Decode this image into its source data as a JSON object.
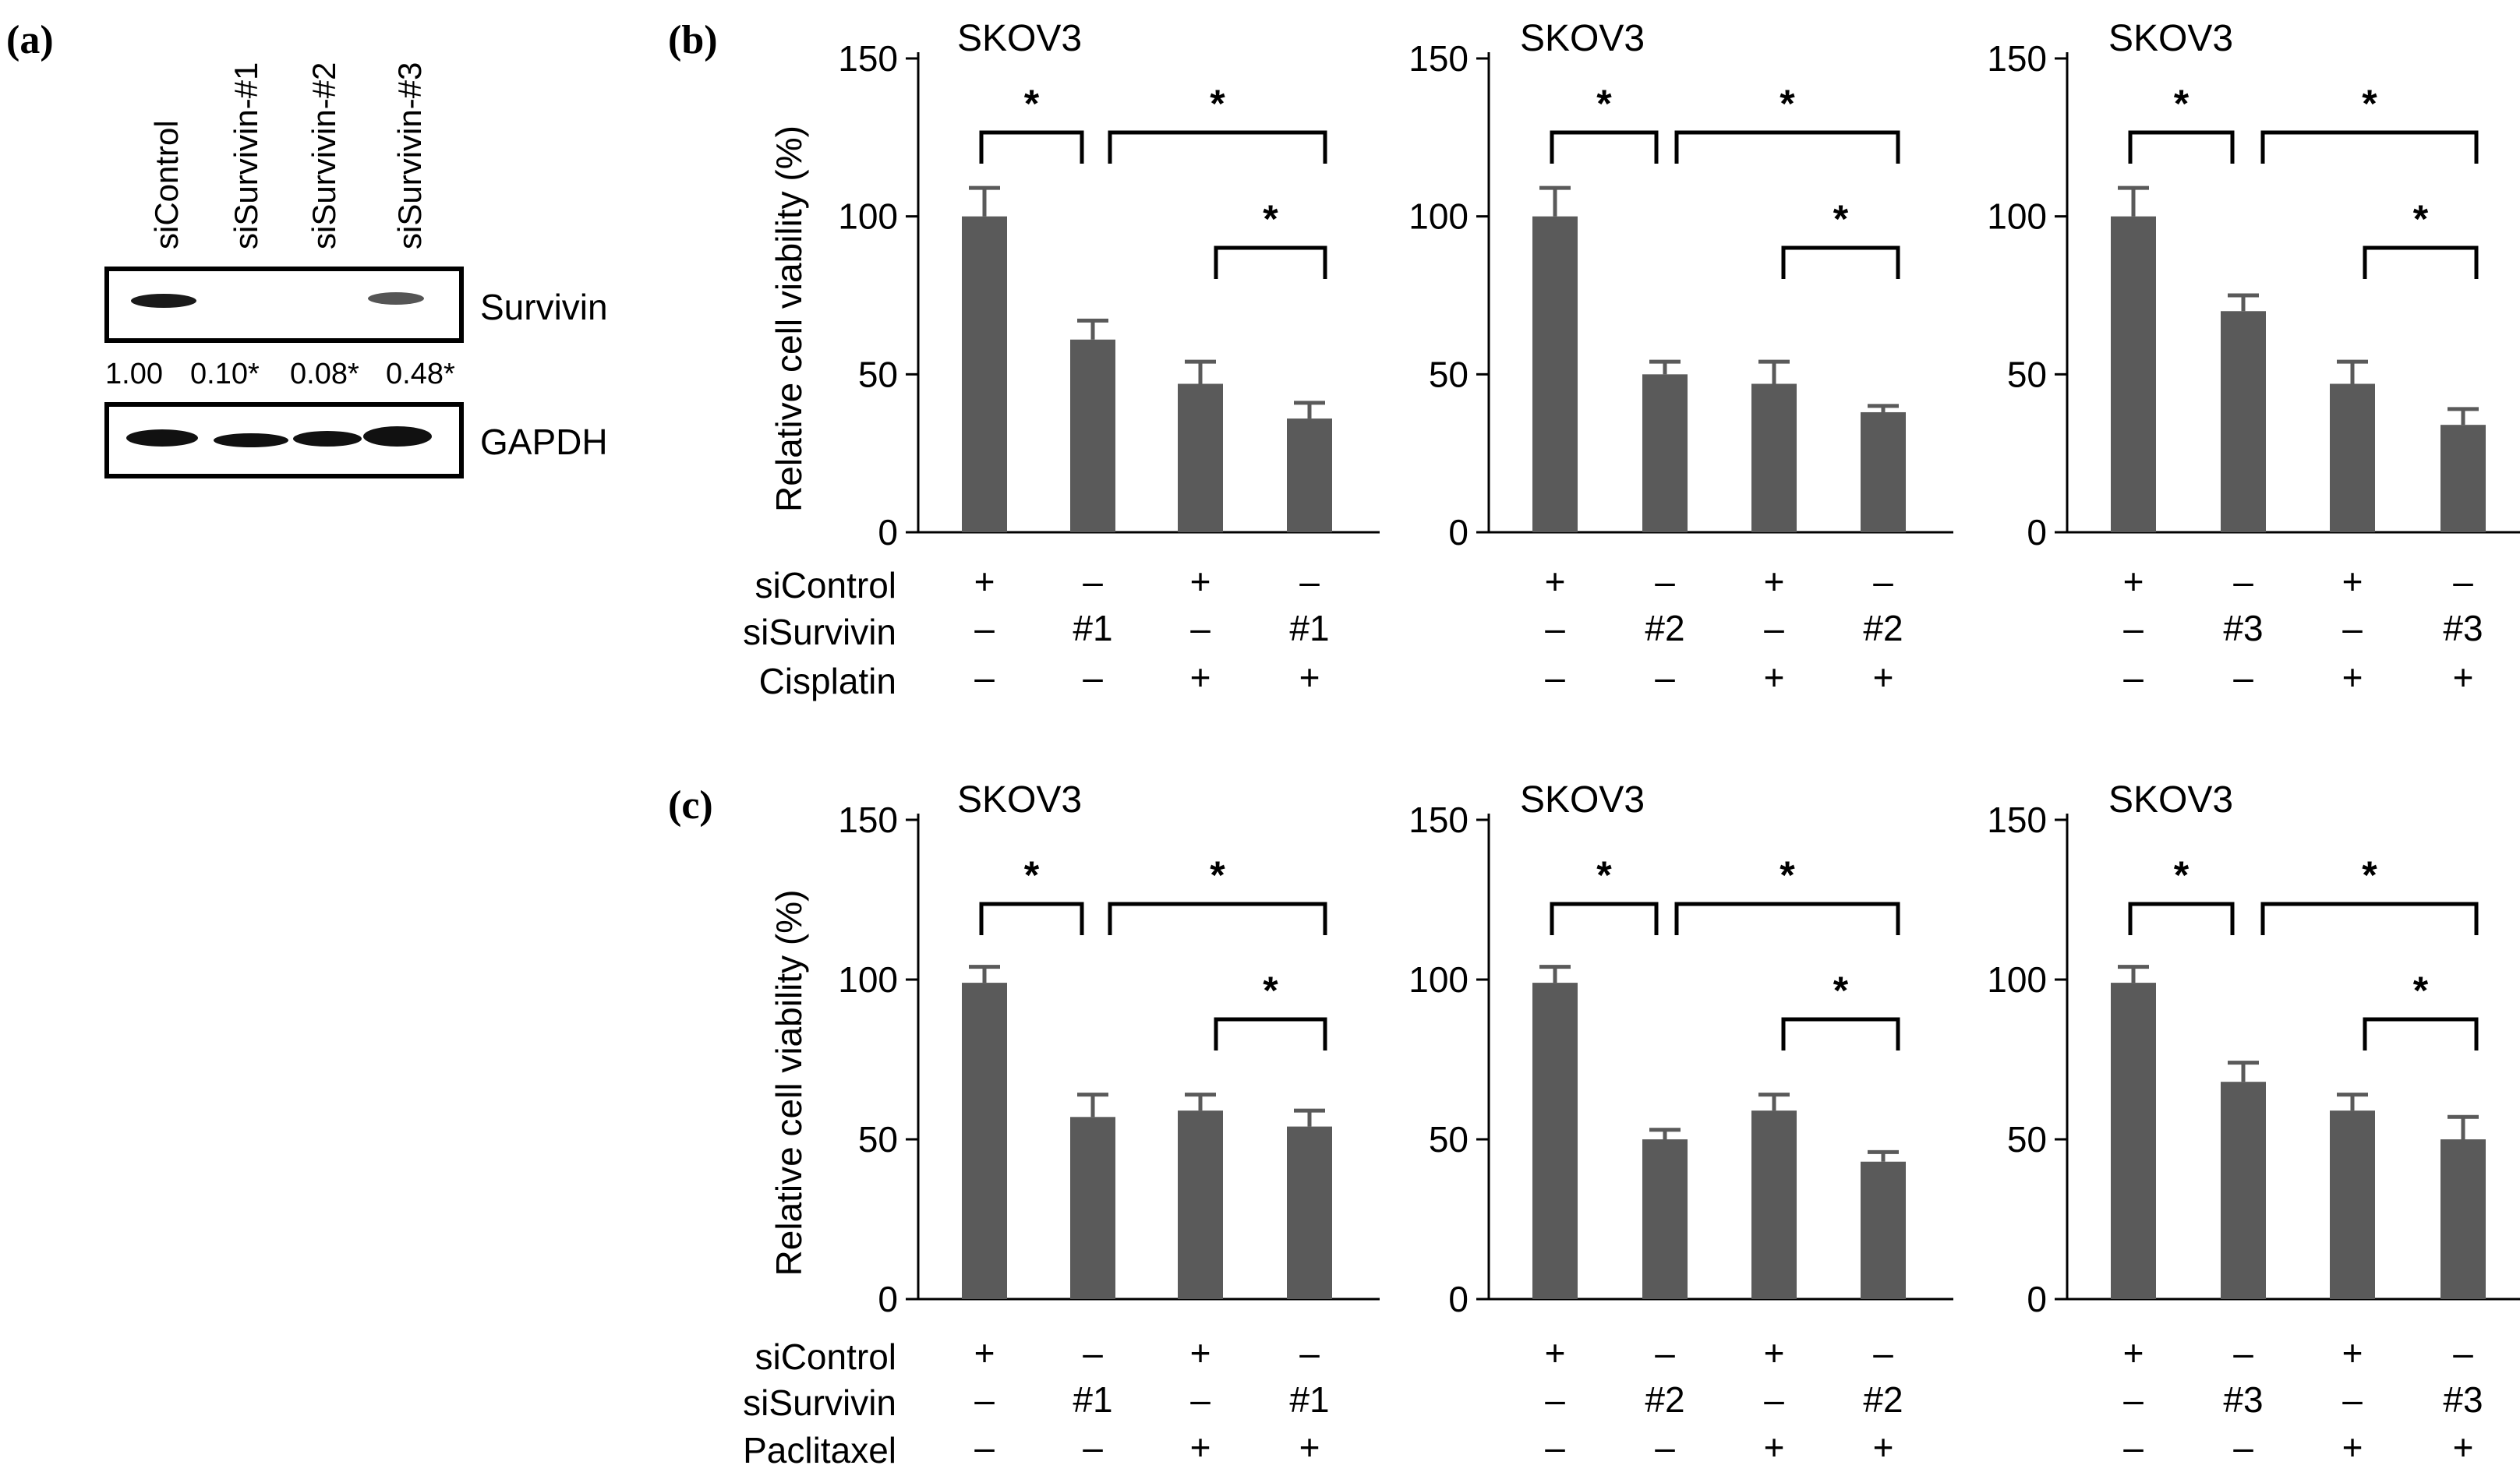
{
  "panel_a": {
    "label": "(a)",
    "lanes": [
      "siControl",
      "siSurvivin-#1",
      "siSurvivin-#2",
      "siSurvivin-#3"
    ],
    "proteins": [
      "Survivin",
      "GAPDH"
    ],
    "quantification": [
      "1.00",
      "0.10*",
      "0.08*",
      "0.48*"
    ]
  },
  "panel_b": {
    "label": "(b)",
    "row_labels": [
      "siControl",
      "siSurvivin",
      "Cisplatin"
    ]
  },
  "panel_c": {
    "label": "(c)",
    "row_labels": [
      "siControl",
      "siSurvivin",
      "Paclitaxel"
    ]
  },
  "chart_data": [
    {
      "id": "b1",
      "type": "bar",
      "panel": "b",
      "title": "SKOV3",
      "ylabel": "Relative cell viability (%)",
      "ylim": [
        0,
        150
      ],
      "yticks": [
        0,
        50,
        100,
        150
      ],
      "values": [
        100,
        61,
        47,
        36
      ],
      "errors": [
        9,
        6,
        7,
        5
      ],
      "conditions": {
        "siControl": [
          "+",
          "–",
          "+",
          "–"
        ],
        "siSurvivin": [
          "–",
          "#1",
          "–",
          "#1"
        ],
        "drug": [
          "–",
          "–",
          "+",
          "+"
        ]
      },
      "significance": [
        {
          "from": 0,
          "to": 1,
          "label": "*"
        },
        {
          "from": 1,
          "to": 3,
          "label": "*"
        },
        {
          "from": 2,
          "to": 3,
          "label": "*"
        }
      ]
    },
    {
      "id": "b2",
      "type": "bar",
      "panel": "b",
      "title": "SKOV3",
      "ylabel": "",
      "ylim": [
        0,
        150
      ],
      "yticks": [
        0,
        50,
        100,
        150
      ],
      "values": [
        100,
        50,
        47,
        38
      ],
      "errors": [
        9,
        4,
        7,
        2
      ],
      "conditions": {
        "siControl": [
          "+",
          "–",
          "+",
          "–"
        ],
        "siSurvivin": [
          "–",
          "#2",
          "–",
          "#2"
        ],
        "drug": [
          "–",
          "–",
          "+",
          "+"
        ]
      },
      "significance": [
        {
          "from": 0,
          "to": 1,
          "label": "*"
        },
        {
          "from": 1,
          "to": 3,
          "label": "*"
        },
        {
          "from": 2,
          "to": 3,
          "label": "*"
        }
      ]
    },
    {
      "id": "b3",
      "type": "bar",
      "panel": "b",
      "title": "SKOV3",
      "ylabel": "",
      "ylim": [
        0,
        150
      ],
      "yticks": [
        0,
        50,
        100,
        150
      ],
      "values": [
        100,
        70,
        47,
        34
      ],
      "errors": [
        9,
        5,
        7,
        5
      ],
      "conditions": {
        "siControl": [
          "+",
          "–",
          "+",
          "–"
        ],
        "siSurvivin": [
          "–",
          "#3",
          "–",
          "#3"
        ],
        "drug": [
          "–",
          "–",
          "+",
          "+"
        ]
      },
      "significance": [
        {
          "from": 0,
          "to": 1,
          "label": "*"
        },
        {
          "from": 1,
          "to": 3,
          "label": "*"
        },
        {
          "from": 2,
          "to": 3,
          "label": "*"
        }
      ]
    },
    {
      "id": "c1",
      "type": "bar",
      "panel": "c",
      "title": "SKOV3",
      "ylabel": "Relative cell viability (%)",
      "ylim": [
        0,
        150
      ],
      "yticks": [
        0,
        50,
        100,
        150
      ],
      "values": [
        99,
        57,
        59,
        54
      ],
      "errors": [
        5,
        7,
        5,
        5
      ],
      "conditions": {
        "siControl": [
          "+",
          "–",
          "+",
          "–"
        ],
        "siSurvivin": [
          "–",
          "#1",
          "–",
          "#1"
        ],
        "drug": [
          "–",
          "–",
          "+",
          "+"
        ]
      },
      "significance": [
        {
          "from": 0,
          "to": 1,
          "label": "*"
        },
        {
          "from": 1,
          "to": 3,
          "label": "*"
        },
        {
          "from": 2,
          "to": 3,
          "label": "*"
        }
      ]
    },
    {
      "id": "c2",
      "type": "bar",
      "panel": "c",
      "title": "SKOV3",
      "ylabel": "",
      "ylim": [
        0,
        150
      ],
      "yticks": [
        0,
        50,
        100,
        150
      ],
      "values": [
        99,
        50,
        59,
        43
      ],
      "errors": [
        5,
        3,
        5,
        3
      ],
      "conditions": {
        "siControl": [
          "+",
          "–",
          "+",
          "–"
        ],
        "siSurvivin": [
          "–",
          "#2",
          "–",
          "#2"
        ],
        "drug": [
          "–",
          "–",
          "+",
          "+"
        ]
      },
      "significance": [
        {
          "from": 0,
          "to": 1,
          "label": "*"
        },
        {
          "from": 1,
          "to": 3,
          "label": "*"
        },
        {
          "from": 2,
          "to": 3,
          "label": "*"
        }
      ]
    },
    {
      "id": "c3",
      "type": "bar",
      "panel": "c",
      "title": "SKOV3",
      "ylabel": "",
      "ylim": [
        0,
        150
      ],
      "yticks": [
        0,
        50,
        100,
        150
      ],
      "values": [
        99,
        68,
        59,
        50
      ],
      "errors": [
        5,
        6,
        5,
        7
      ],
      "conditions": {
        "siControl": [
          "+",
          "–",
          "+",
          "–"
        ],
        "siSurvivin": [
          "–",
          "#3",
          "–",
          "#3"
        ],
        "drug": [
          "–",
          "–",
          "+",
          "+"
        ]
      },
      "significance": [
        {
          "from": 0,
          "to": 1,
          "label": "*"
        },
        {
          "from": 1,
          "to": 3,
          "label": "*"
        },
        {
          "from": 2,
          "to": 3,
          "label": "*"
        }
      ]
    }
  ],
  "colors": {
    "bar": "#5a5a5a",
    "axis": "#000000",
    "text": "#000000"
  }
}
